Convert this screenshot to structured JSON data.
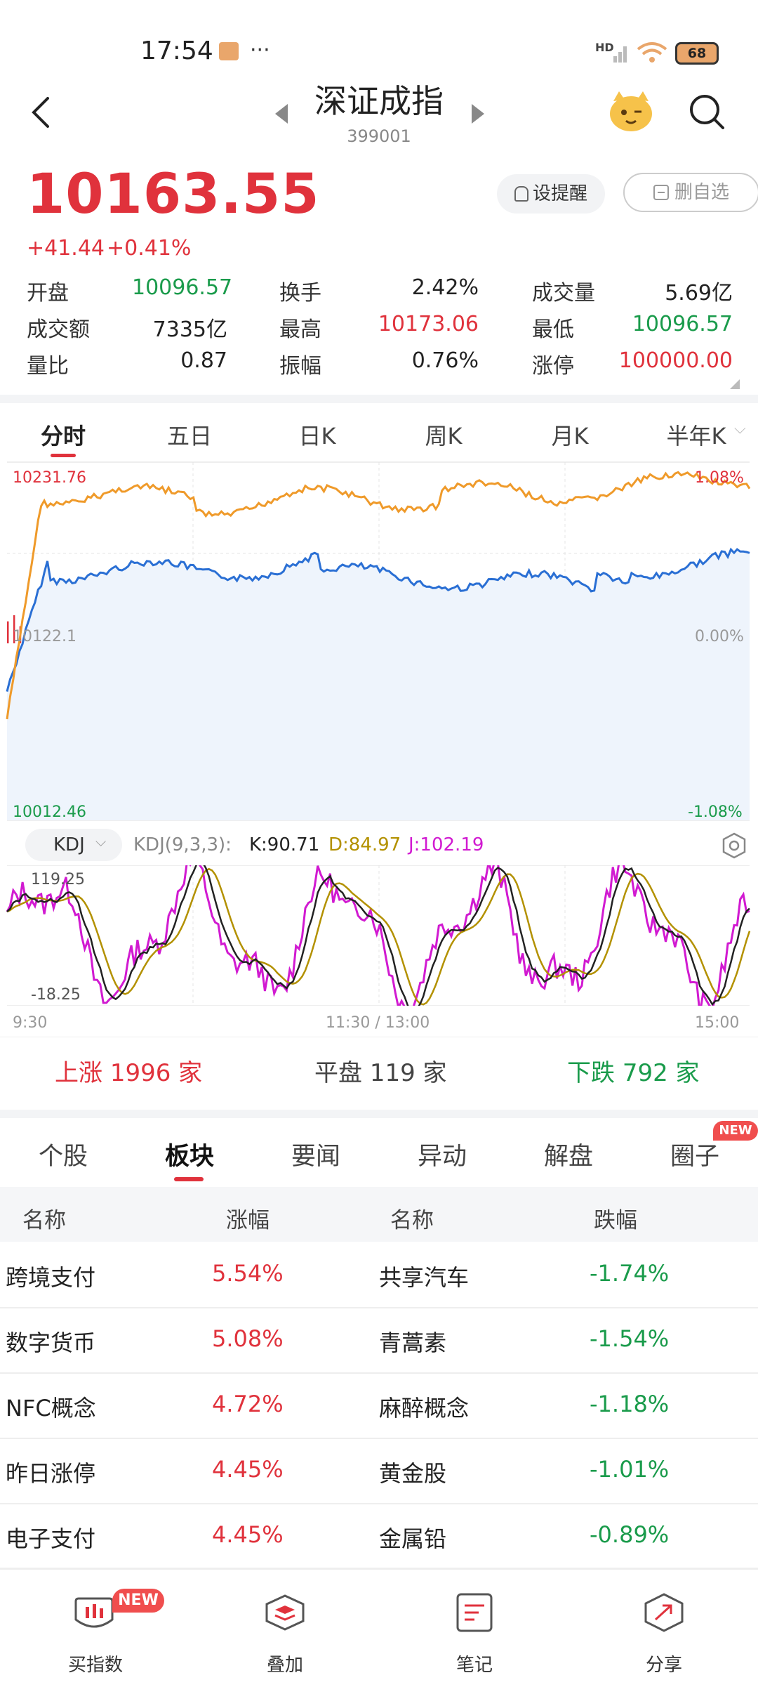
{
  "status": {
    "time": "17:54",
    "battery": "68",
    "hd": "HD"
  },
  "header": {
    "title": "深证成指",
    "code": "399001"
  },
  "quote": {
    "price": "10163.55",
    "change": "+41.44",
    "change_pct": "+0.41%",
    "alert_label": "设提醒",
    "remove_label": "删自选"
  },
  "stats": [
    {
      "label": "开盘",
      "value": "10096.57",
      "color": "green"
    },
    {
      "label": "换手",
      "value": "2.42%",
      "color": "dark"
    },
    {
      "label": "成交量",
      "value": "5.69亿",
      "color": "dark"
    },
    {
      "label": "成交额",
      "value": "7335亿",
      "color": "dark"
    },
    {
      "label": "最高",
      "value": "10173.06",
      "color": "red"
    },
    {
      "label": "最低",
      "value": "10096.57",
      "color": "green"
    },
    {
      "label": "量比",
      "value": "0.87",
      "color": "dark"
    },
    {
      "label": "振幅",
      "value": "0.76%",
      "color": "dark"
    },
    {
      "label": "涨停",
      "value": "100000.00",
      "color": "red"
    }
  ],
  "chart_tabs": [
    "分时",
    "五日",
    "日K",
    "周K",
    "月K",
    "半年K"
  ],
  "chart": {
    "top_label": "10231.76",
    "top_pct": "1.08%",
    "bottom_label": "10012.46",
    "bottom_pct": "-1.08%",
    "mid_pct": "0.00%",
    "mid_label": "10122.1"
  },
  "kdj": {
    "selector": "KDJ",
    "params": "KDJ(9,3,3):",
    "k": "K:90.71",
    "d": "D:84.97",
    "j": "J:102.19",
    "top": "119.25",
    "bottom": "-18.25"
  },
  "time_axis": [
    "9:30",
    "11:30 / 13:00",
    "15:00"
  ],
  "breadth": {
    "up_label": "上涨",
    "up_count": "1996",
    "up_unit": "家",
    "flat_label": "平盘",
    "flat_count": "119",
    "flat_unit": "家",
    "down_label": "下跌",
    "down_count": "792",
    "down_unit": "家"
  },
  "sub_tabs": [
    "个股",
    "板块",
    "要闻",
    "异动",
    "解盘",
    "圈子"
  ],
  "new_badge": "NEW",
  "table": {
    "headers": [
      "名称",
      "涨幅",
      "名称",
      "跌幅"
    ],
    "rows": [
      {
        "up_name": "跨境支付",
        "up_pct": "5.54%",
        "down_name": "共享汽车",
        "down_pct": "-1.74%"
      },
      {
        "up_name": "数字货币",
        "up_pct": "5.08%",
        "down_name": "青蒿素",
        "down_pct": "-1.54%"
      },
      {
        "up_name": "NFC概念",
        "up_pct": "4.72%",
        "down_name": "麻醉概念",
        "down_pct": "-1.18%"
      },
      {
        "up_name": "昨日涨停",
        "up_pct": "4.45%",
        "down_name": "黄金股",
        "down_pct": "-1.01%"
      },
      {
        "up_name": "电子支付",
        "up_pct": "4.45%",
        "down_name": "金属铅",
        "down_pct": "-0.89%"
      }
    ]
  },
  "bottom_nav": [
    {
      "label": "买指数",
      "badge": "NEW"
    },
    {
      "label": "叠加"
    },
    {
      "label": "笔记"
    },
    {
      "label": "分享"
    }
  ]
}
